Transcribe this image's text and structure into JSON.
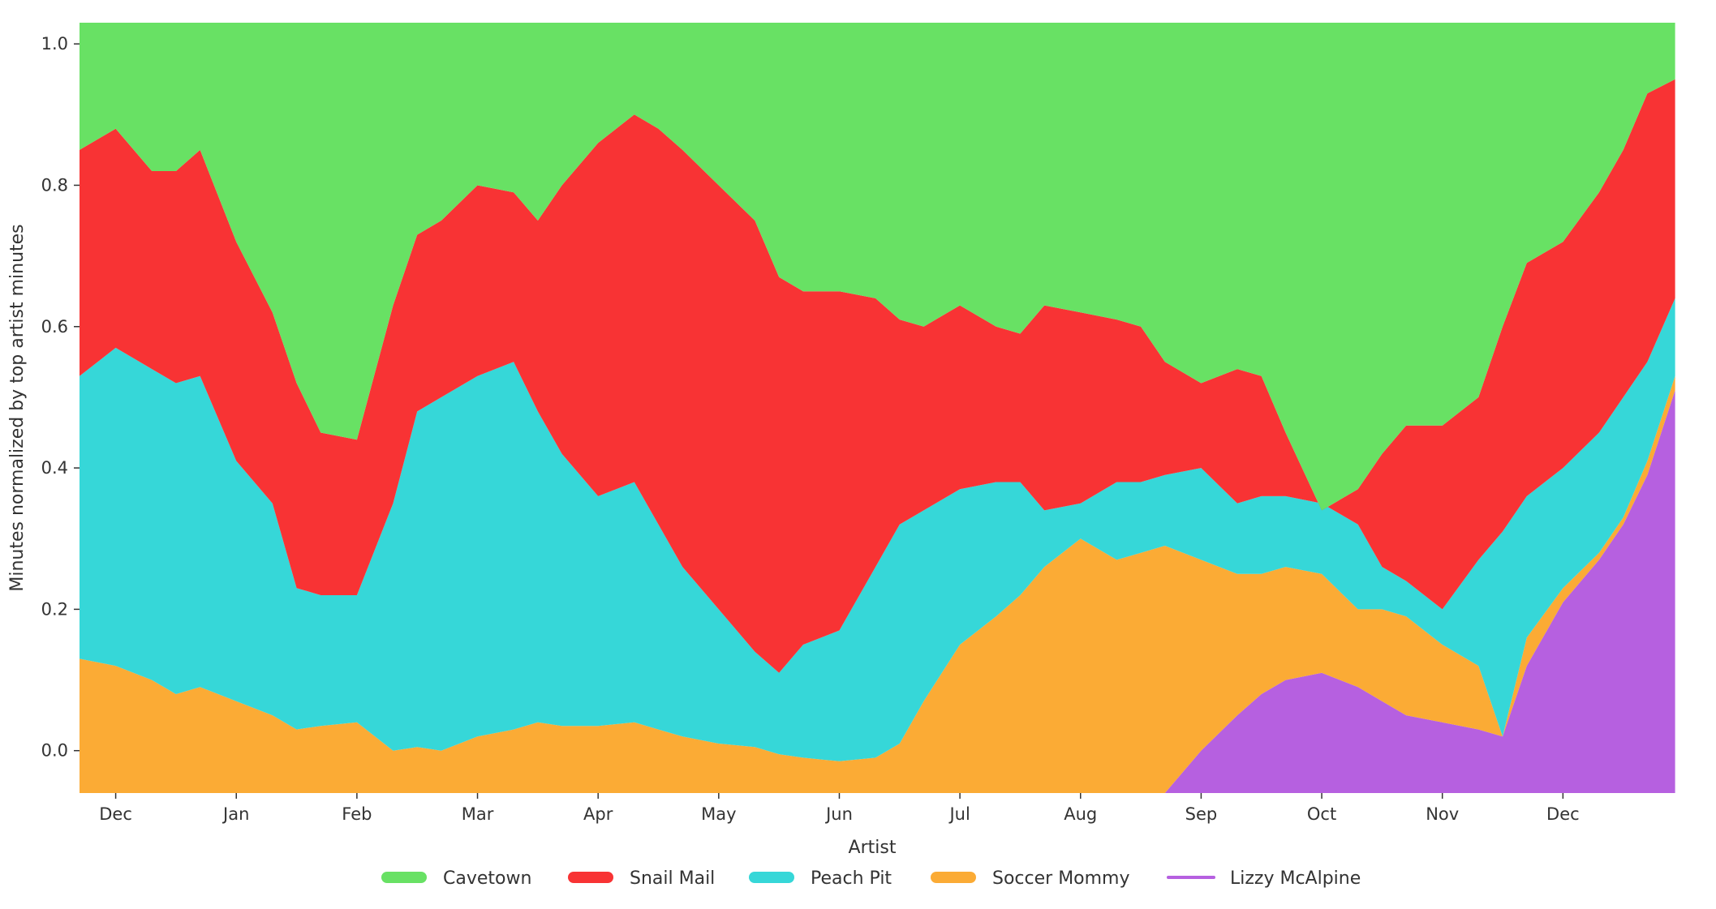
{
  "chart_data": {
    "type": "area",
    "stacked": true,
    "title": "",
    "xlabel": "",
    "ylabel": "Minutes normalized by top artist minutes",
    "legend_title": "Artist",
    "legend_position": "bottom-center",
    "grid": false,
    "xlim": [
      -0.3,
      13.0
    ],
    "ylim": [
      -0.06,
      1.03
    ],
    "x_ticks": [
      0,
      1,
      2,
      3,
      4,
      5,
      6,
      7,
      8,
      9,
      10,
      11,
      12
    ],
    "x_tick_labels": [
      "Dec",
      "Jan",
      "Feb",
      "Mar",
      "Apr",
      "May",
      "Jun",
      "Jul",
      "Aug",
      "Sep",
      "Oct",
      "Nov",
      "Dec"
    ],
    "y_ticks": [
      0.0,
      0.2,
      0.4,
      0.6,
      0.8,
      1.0
    ],
    "y_tick_labels": [
      "0.0",
      "0.2",
      "0.4",
      "0.6",
      "0.8",
      "1.0"
    ],
    "x": [
      -0.3,
      0.0,
      0.3,
      0.5,
      0.7,
      1.0,
      1.3,
      1.5,
      1.7,
      2.0,
      2.3,
      2.5,
      2.7,
      3.0,
      3.3,
      3.5,
      3.7,
      4.0,
      4.3,
      4.5,
      4.7,
      5.0,
      5.3,
      5.5,
      5.7,
      6.0,
      6.3,
      6.5,
      6.7,
      7.0,
      7.3,
      7.5,
      7.7,
      8.0,
      8.3,
      8.5,
      8.7,
      9.0,
      9.3,
      9.5,
      9.7,
      10.0,
      10.3,
      10.5,
      10.7,
      11.0,
      11.3,
      11.5,
      11.7,
      12.0,
      12.3,
      12.5,
      12.7,
      12.93
    ],
    "series": [
      {
        "name": "Lizzy McAlpine",
        "color": "#b660e0",
        "top": [
          -0.06,
          -0.06,
          -0.06,
          -0.06,
          -0.06,
          -0.06,
          -0.06,
          -0.06,
          -0.06,
          -0.06,
          -0.06,
          -0.06,
          -0.06,
          -0.06,
          -0.06,
          -0.06,
          -0.06,
          -0.06,
          -0.06,
          -0.06,
          -0.06,
          -0.06,
          -0.06,
          -0.06,
          -0.06,
          -0.06,
          -0.06,
          -0.06,
          -0.06,
          -0.06,
          -0.06,
          -0.06,
          -0.06,
          -0.06,
          -0.06,
          -0.06,
          -0.06,
          0.0,
          0.05,
          0.08,
          0.1,
          0.11,
          0.09,
          0.07,
          0.05,
          0.04,
          0.03,
          0.02,
          0.12,
          0.21,
          0.27,
          0.32,
          0.39,
          0.51
        ]
      },
      {
        "name": "Soccer Mommy",
        "color": "#fbab35",
        "top": [
          0.13,
          0.12,
          0.1,
          0.08,
          0.09,
          0.07,
          0.05,
          0.03,
          0.035,
          0.04,
          0.0,
          0.005,
          0.0,
          0.02,
          0.03,
          0.04,
          0.035,
          0.035,
          0.04,
          0.03,
          0.02,
          0.01,
          0.005,
          -0.005,
          -0.01,
          -0.015,
          -0.01,
          0.01,
          0.07,
          0.15,
          0.19,
          0.22,
          0.26,
          0.3,
          0.27,
          0.28,
          0.29,
          0.27,
          0.25,
          0.25,
          0.26,
          0.25,
          0.2,
          0.2,
          0.19,
          0.15,
          0.12,
          0.02,
          0.16,
          0.23,
          0.28,
          0.33,
          0.41,
          0.53
        ]
      },
      {
        "name": "Peach Pit",
        "color": "#36d7d8",
        "top": [
          0.53,
          0.57,
          0.54,
          0.52,
          0.53,
          0.41,
          0.35,
          0.23,
          0.22,
          0.22,
          0.35,
          0.48,
          0.5,
          0.53,
          0.55,
          0.48,
          0.42,
          0.36,
          0.38,
          0.32,
          0.26,
          0.2,
          0.14,
          0.11,
          0.15,
          0.17,
          0.26,
          0.32,
          0.34,
          0.37,
          0.38,
          0.38,
          0.34,
          0.35,
          0.38,
          0.38,
          0.39,
          0.4,
          0.35,
          0.36,
          0.36,
          0.35,
          0.32,
          0.26,
          0.24,
          0.2,
          0.27,
          0.31,
          0.36,
          0.4,
          0.45,
          0.5,
          0.55,
          0.64
        ]
      },
      {
        "name": "Snail Mail",
        "color": "#f83334",
        "top": [
          0.85,
          0.88,
          0.82,
          0.82,
          0.85,
          0.72,
          0.62,
          0.52,
          0.45,
          0.44,
          0.63,
          0.73,
          0.75,
          0.8,
          0.79,
          0.75,
          0.8,
          0.86,
          0.9,
          0.88,
          0.85,
          0.8,
          0.75,
          0.67,
          0.65,
          0.65,
          0.64,
          0.61,
          0.6,
          0.63,
          0.6,
          0.59,
          0.63,
          0.62,
          0.61,
          0.6,
          0.55,
          0.52,
          0.54,
          0.53,
          0.45,
          0.34,
          0.37,
          0.42,
          0.46,
          0.46,
          0.5,
          0.6,
          0.69,
          0.72,
          0.79,
          0.85,
          0.93,
          0.95
        ]
      },
      {
        "name": "Cavetown",
        "color": "#68e164",
        "top": [
          1.03,
          1.03,
          1.03,
          1.03,
          1.03,
          1.03,
          1.03,
          1.03,
          1.03,
          1.03,
          1.03,
          1.03,
          1.03,
          1.03,
          1.03,
          1.03,
          1.03,
          1.03,
          1.03,
          1.03,
          1.03,
          1.03,
          1.03,
          1.03,
          1.03,
          1.03,
          1.03,
          1.03,
          1.03,
          1.03,
          1.03,
          1.03,
          1.03,
          1.03,
          1.03,
          1.03,
          1.03,
          1.03,
          1.03,
          1.03,
          1.03,
          1.03,
          1.03,
          1.03,
          1.03,
          1.03,
          1.03,
          1.03,
          1.03,
          1.03,
          1.03,
          1.03,
          1.03,
          1.03
        ]
      }
    ],
    "legend": [
      {
        "name": "Cavetown",
        "color": "#68e164",
        "marker": "area"
      },
      {
        "name": "Snail Mail",
        "color": "#f83334",
        "marker": "area"
      },
      {
        "name": "Peach Pit",
        "color": "#36d7d8",
        "marker": "area"
      },
      {
        "name": "Soccer Mommy",
        "color": "#fbab35",
        "marker": "area"
      },
      {
        "name": "Lizzy McAlpine",
        "color": "#b660e0",
        "marker": "line"
      }
    ]
  }
}
